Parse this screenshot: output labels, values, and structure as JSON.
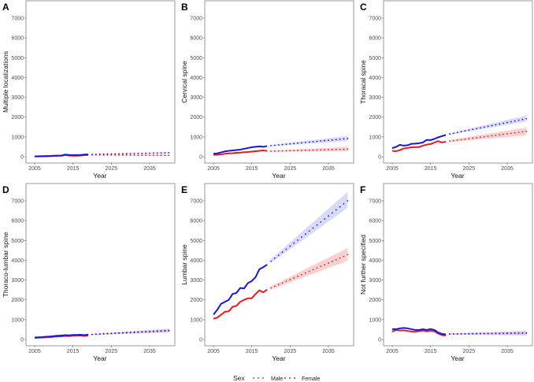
{
  "chart_data": {
    "type": "line",
    "legend": {
      "title": "Sex",
      "entries": [
        "Male",
        "Female"
      ],
      "placement": "bottom"
    },
    "colors": {
      "Male": "#e8191b",
      "Female": "#1717d8",
      "Male_band": "#f7b9b9",
      "Female_band": "#c4c4f8"
    },
    "xlabel": "Year",
    "xticks": [
      2005,
      2015,
      2025,
      2035
    ],
    "xlim": [
      2003,
      2041.5
    ],
    "ylim": [
      0,
      7000
    ],
    "yticks": [
      0,
      1000,
      2000,
      3000,
      4000,
      5000,
      6000,
      7000
    ],
    "observed_years": [
      2005,
      2019
    ],
    "projected_years": [
      2020,
      2040
    ],
    "panels": [
      {
        "letter": "A",
        "ylabel": "Multiple localizations",
        "observed": {
          "Female": [
            20,
            25,
            30,
            35,
            40,
            50,
            55,
            60,
            110,
            90,
            85,
            85,
            90,
            110,
            120
          ],
          "Male": [
            10,
            15,
            20,
            25,
            30,
            40,
            45,
            50,
            90,
            60,
            50,
            50,
            60,
            80,
            90
          ]
        },
        "projected": {
          "Female": {
            "start": 120,
            "end": 200,
            "lo_end": 170,
            "hi_end": 230
          },
          "Male": {
            "start": 90,
            "end": 70,
            "lo_end": 40,
            "hi_end": 110
          }
        }
      },
      {
        "letter": "B",
        "ylabel": "Cervical spine",
        "observed": {
          "Female": [
            150,
            170,
            220,
            270,
            300,
            320,
            340,
            360,
            400,
            440,
            480,
            500,
            520,
            500,
            540
          ],
          "Male": [
            100,
            100,
            120,
            150,
            170,
            180,
            200,
            210,
            230,
            240,
            260,
            280,
            300,
            320,
            290
          ]
        },
        "projected": {
          "Female": {
            "start": 560,
            "end": 920,
            "lo_end": 790,
            "hi_end": 1050
          },
          "Male": {
            "start": 280,
            "end": 380,
            "lo_end": 270,
            "hi_end": 500
          }
        }
      },
      {
        "letter": "C",
        "ylabel": "Thoracal spine",
        "observed": {
          "Female": [
            430,
            500,
            600,
            560,
            580,
            650,
            660,
            680,
            720,
            850,
            840,
            900,
            980,
            1040,
            1100
          ],
          "Male": [
            300,
            280,
            330,
            420,
            440,
            480,
            480,
            490,
            560,
            610,
            640,
            720,
            790,
            720,
            760
          ]
        },
        "projected": {
          "Female": {
            "start": 1150,
            "end": 1920,
            "lo_end": 1780,
            "hi_end": 2080
          },
          "Male": {
            "start": 790,
            "end": 1280,
            "lo_end": 1080,
            "hi_end": 1480
          }
        }
      },
      {
        "letter": "D",
        "ylabel": "Thoraco-lumbar spine",
        "observed": {
          "Female": [
            100,
            110,
            120,
            140,
            150,
            170,
            190,
            200,
            220,
            210,
            230,
            230,
            240,
            220,
            250
          ],
          "Male": [
            80,
            90,
            100,
            110,
            120,
            140,
            150,
            160,
            180,
            170,
            190,
            200,
            200,
            180,
            200
          ]
        },
        "projected": {
          "Female": {
            "start": 260,
            "end": 460,
            "lo_end": 380,
            "hi_end": 540
          },
          "Male": {
            "start": 250,
            "end": 430,
            "lo_end": 350,
            "hi_end": 510
          }
        }
      },
      {
        "letter": "E",
        "ylabel": "Lumbar spine",
        "observed": {
          "Female": [
            1250,
            1500,
            1800,
            1900,
            2000,
            2300,
            2350,
            2600,
            2580,
            2850,
            2950,
            3150,
            3550,
            3650,
            3780
          ],
          "Male": [
            1050,
            1100,
            1250,
            1400,
            1420,
            1650,
            1700,
            1900,
            2000,
            2080,
            2080,
            2300,
            2480,
            2380,
            2520
          ]
        },
        "projected": {
          "Female": {
            "start": 3950,
            "end": 7000,
            "lo_end": 6650,
            "hi_end": 7450
          },
          "Male": {
            "start": 2600,
            "end": 4280,
            "lo_end": 3970,
            "hi_end": 4620
          }
        }
      },
      {
        "letter": "F",
        "ylabel": "Not further specified",
        "observed": {
          "Female": [
            520,
            520,
            560,
            580,
            560,
            520,
            480,
            480,
            520,
            480,
            530,
            480,
            350,
            280,
            260
          ],
          "Male": [
            400,
            480,
            450,
            460,
            430,
            400,
            390,
            420,
            450,
            410,
            440,
            410,
            300,
            220,
            200
          ]
        },
        "projected": {
          "Female": {
            "start": 280,
            "end": 320,
            "lo_end": 200,
            "hi_end": 440
          },
          "Male": {
            "start": 270,
            "end": 330,
            "lo_end": 220,
            "hi_end": 420
          }
        }
      }
    ]
  }
}
